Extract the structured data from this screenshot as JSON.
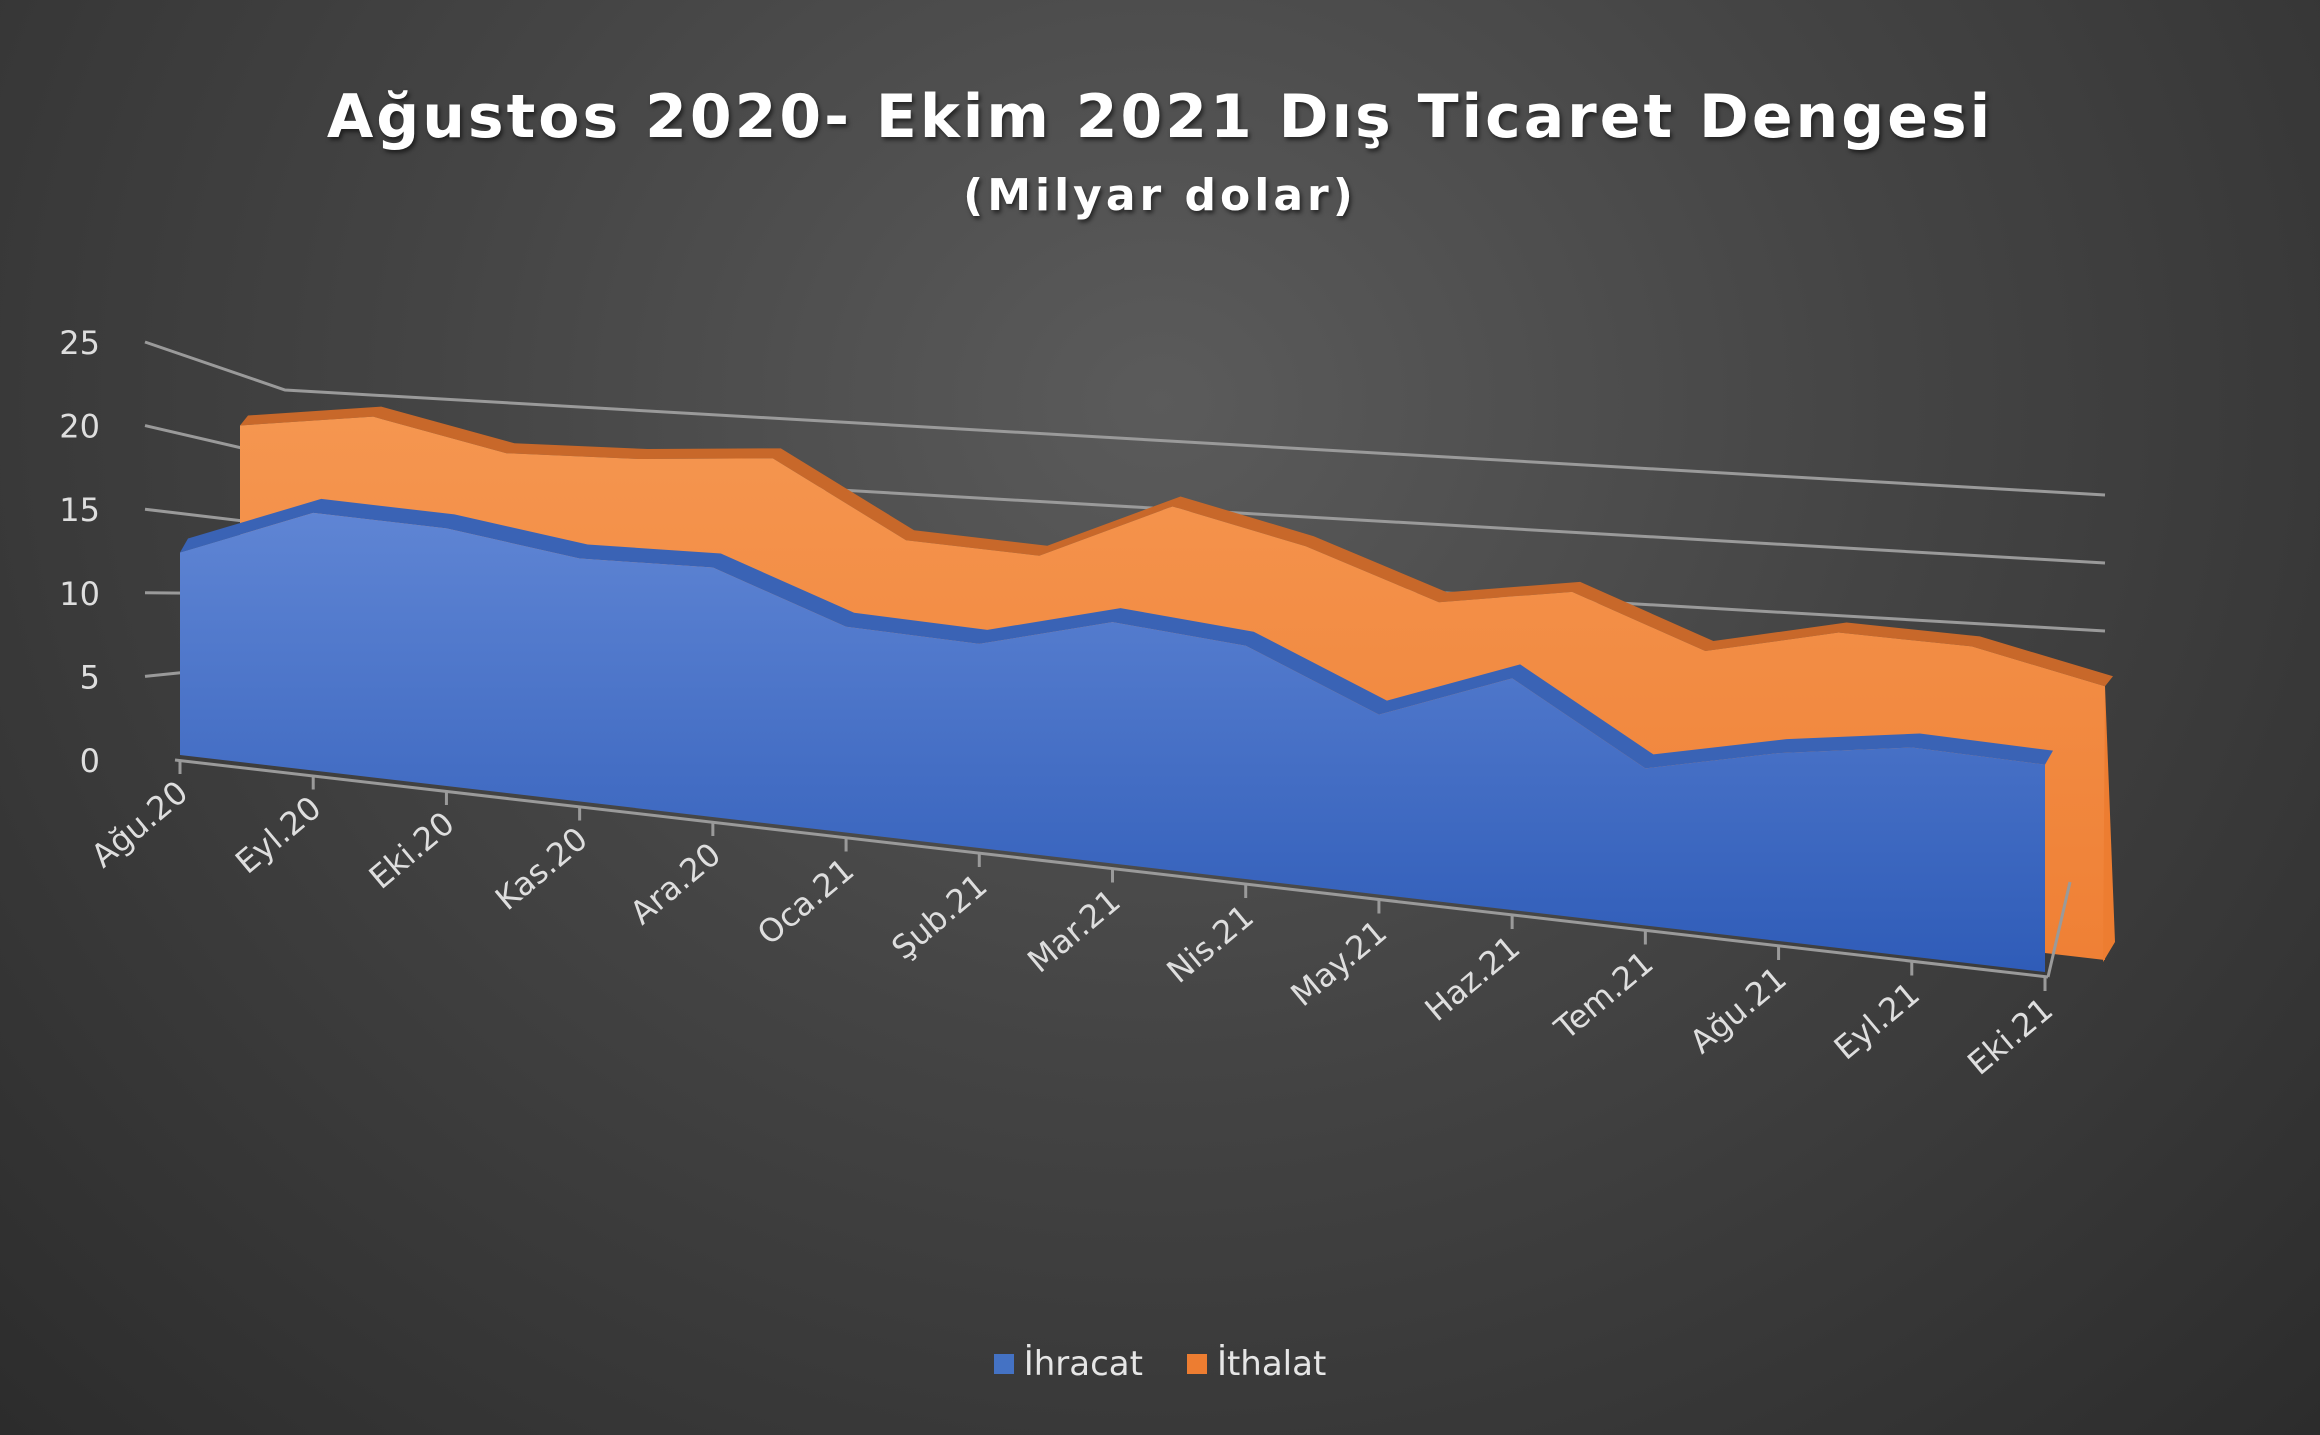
{
  "chart_data": {
    "type": "area",
    "title": "Ağustos 2020- Ekim 2021 Dış Ticaret Dengesi",
    "subtitle": "(Milyar dolar)",
    "xlabel": "",
    "ylabel": "",
    "categories": [
      "Ağu.20",
      "Eyl.20",
      "Eki.20",
      "Kas.20",
      "Ara.20",
      "Oca.21",
      "Şub.21",
      "Mar.21",
      "Nis.21",
      "May.21",
      "Haz.21",
      "Tem.21",
      "Ağu.21",
      "Eyl.21",
      "Eki.21"
    ],
    "yticks": [
      "0",
      "5",
      "10",
      "15",
      "20",
      "25"
    ],
    "ylim": [
      0,
      25
    ],
    "grid": true,
    "legend_position": "bottom",
    "series": [
      {
        "name": "İhracat",
        "color": "#4472c4",
        "values": [
          12.5,
          15.9,
          15.9,
          15.0,
          15.4,
          12.7,
          12.6,
          14.9,
          14.4,
          11.1,
          14.3,
          9.7,
          11.6,
          12.9,
          12.8
        ]
      },
      {
        "name": "İthalat",
        "color": "#ed7d31",
        "values": [
          19.6,
          21.1,
          19.8,
          20.4,
          21.4,
          17.3,
          17.3,
          21.3,
          19.8,
          17.3,
          18.9,
          16.2,
          18.3,
          18.4,
          16.9
        ]
      }
    ]
  }
}
